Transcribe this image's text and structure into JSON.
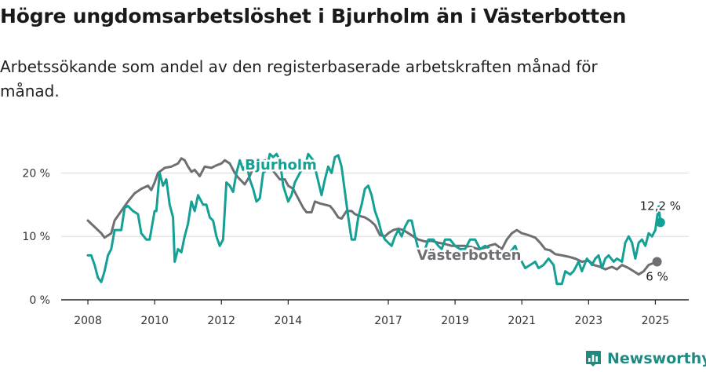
{
  "title": "Högre ungdomsarbetslöshet i Bjurholm än i Västerbotten",
  "subtitle": "Arbetssökande som andel av den registerbaserade arbetskraften månad för månad.",
  "brand": {
    "name": "Newsworthy",
    "icon": "newsworthy-logo-icon",
    "color": "#1f8a80"
  },
  "chart_data": {
    "type": "line",
    "x_unit": "year",
    "xlim": [
      2007.2,
      2026.0
    ],
    "ylim": [
      0,
      25
    ],
    "grid": true,
    "y_ticks": [
      {
        "value": 0,
        "label": "0 %"
      },
      {
        "value": 10,
        "label": "10 %"
      },
      {
        "value": 20,
        "label": "20 %"
      }
    ],
    "x_ticks": [
      {
        "value": 2008,
        "label": "2008"
      },
      {
        "value": 2010,
        "label": "2010"
      },
      {
        "value": 2012,
        "label": "2012"
      },
      {
        "value": 2014,
        "label": "2014"
      },
      {
        "value": 2017,
        "label": "2017"
      },
      {
        "value": 2019,
        "label": "2019"
      },
      {
        "value": 2021,
        "label": "2021"
      },
      {
        "value": 2023,
        "label": "2023"
      },
      {
        "value": 2025,
        "label": "2025"
      }
    ],
    "series": [
      {
        "name": "Västerbotten",
        "color": "#6e6e73",
        "end_label": "6 %",
        "points": [
          [
            2008.0,
            12.5
          ],
          [
            2008.2,
            11.5
          ],
          [
            2008.4,
            10.5
          ],
          [
            2008.5,
            9.8
          ],
          [
            2008.7,
            10.5
          ],
          [
            2008.8,
            12.5
          ],
          [
            2009.0,
            14.0
          ],
          [
            2009.2,
            15.5
          ],
          [
            2009.4,
            16.8
          ],
          [
            2009.6,
            17.5
          ],
          [
            2009.8,
            18.0
          ],
          [
            2009.9,
            17.3
          ],
          [
            2010.0,
            18.5
          ],
          [
            2010.1,
            20.0
          ],
          [
            2010.3,
            20.8
          ],
          [
            2010.5,
            21.0
          ],
          [
            2010.7,
            21.5
          ],
          [
            2010.8,
            22.3
          ],
          [
            2010.9,
            22.0
          ],
          [
            2011.0,
            21.0
          ],
          [
            2011.1,
            20.2
          ],
          [
            2011.2,
            20.5
          ],
          [
            2011.35,
            19.5
          ],
          [
            2011.5,
            21.0
          ],
          [
            2011.7,
            20.8
          ],
          [
            2011.85,
            21.2
          ],
          [
            2012.0,
            21.5
          ],
          [
            2012.1,
            22.0
          ],
          [
            2012.25,
            21.5
          ],
          [
            2012.4,
            20.0
          ],
          [
            2012.5,
            19.3
          ],
          [
            2012.7,
            18.2
          ],
          [
            2012.85,
            19.5
          ],
          [
            2013.0,
            21.5
          ],
          [
            2013.15,
            21.8
          ],
          [
            2013.3,
            22.0
          ],
          [
            2013.45,
            21.0
          ],
          [
            2013.6,
            20.0
          ],
          [
            2013.75,
            19.0
          ],
          [
            2013.9,
            19.0
          ],
          [
            2014.0,
            18.0
          ],
          [
            2014.15,
            17.5
          ],
          [
            2014.3,
            16.0
          ],
          [
            2014.45,
            14.5
          ],
          [
            2014.55,
            13.8
          ],
          [
            2014.7,
            13.8
          ],
          [
            2014.8,
            15.5
          ],
          [
            2014.95,
            15.2
          ],
          [
            2015.1,
            15.0
          ],
          [
            2015.25,
            14.8
          ],
          [
            2015.35,
            14.2
          ],
          [
            2015.5,
            13.0
          ],
          [
            2015.6,
            12.8
          ],
          [
            2015.75,
            14.0
          ],
          [
            2015.9,
            14.0
          ],
          [
            2016.0,
            13.5
          ],
          [
            2016.15,
            13.2
          ],
          [
            2016.3,
            13.0
          ],
          [
            2016.45,
            12.5
          ],
          [
            2016.6,
            11.8
          ],
          [
            2016.75,
            10.2
          ],
          [
            2016.9,
            10.0
          ],
          [
            2017.0,
            10.5
          ],
          [
            2017.15,
            11.0
          ],
          [
            2017.3,
            11.2
          ],
          [
            2017.45,
            11.0
          ],
          [
            2017.6,
            10.5
          ],
          [
            2017.75,
            10.0
          ],
          [
            2017.9,
            9.5
          ],
          [
            2018.1,
            9.2
          ],
          [
            2018.3,
            9.3
          ],
          [
            2018.5,
            9.0
          ],
          [
            2018.7,
            8.8
          ],
          [
            2018.9,
            8.5
          ],
          [
            2019.1,
            8.5
          ],
          [
            2019.3,
            8.5
          ],
          [
            2019.5,
            8.3
          ],
          [
            2019.7,
            8.0
          ],
          [
            2019.9,
            8.2
          ],
          [
            2020.0,
            8.5
          ],
          [
            2020.2,
            8.8
          ],
          [
            2020.4,
            8.0
          ],
          [
            2020.55,
            9.5
          ],
          [
            2020.7,
            10.5
          ],
          [
            2020.85,
            11.0
          ],
          [
            2021.0,
            10.5
          ],
          [
            2021.2,
            10.2
          ],
          [
            2021.4,
            9.8
          ],
          [
            2021.55,
            9.0
          ],
          [
            2021.7,
            8.0
          ],
          [
            2021.85,
            7.8
          ],
          [
            2022.0,
            7.2
          ],
          [
            2022.2,
            7.0
          ],
          [
            2022.4,
            6.8
          ],
          [
            2022.6,
            6.5
          ],
          [
            2022.8,
            6.0
          ],
          [
            2023.0,
            6.2
          ],
          [
            2023.15,
            5.5
          ],
          [
            2023.35,
            5.2
          ],
          [
            2023.5,
            4.8
          ],
          [
            2023.7,
            5.2
          ],
          [
            2023.85,
            4.8
          ],
          [
            2024.0,
            5.5
          ],
          [
            2024.2,
            5.0
          ],
          [
            2024.35,
            4.5
          ],
          [
            2024.5,
            4.0
          ],
          [
            2024.65,
            4.5
          ],
          [
            2024.8,
            5.5
          ],
          [
            2024.95,
            5.8
          ],
          [
            2025.05,
            6.0
          ]
        ]
      },
      {
        "name": "Bjurholm",
        "color": "#14a094",
        "end_label": "12,2 %",
        "points": [
          [
            2008.0,
            7.0
          ],
          [
            2008.1,
            7.0
          ],
          [
            2008.2,
            5.5
          ],
          [
            2008.3,
            3.5
          ],
          [
            2008.4,
            2.8
          ],
          [
            2008.5,
            4.5
          ],
          [
            2008.6,
            7.0
          ],
          [
            2008.7,
            8.0
          ],
          [
            2008.8,
            11.0
          ],
          [
            2008.9,
            11.0
          ],
          [
            2009.0,
            11.0
          ],
          [
            2009.1,
            14.5
          ],
          [
            2009.2,
            14.8
          ],
          [
            2009.35,
            14.0
          ],
          [
            2009.5,
            13.5
          ],
          [
            2009.6,
            10.5
          ],
          [
            2009.75,
            9.5
          ],
          [
            2009.85,
            9.5
          ],
          [
            2010.0,
            14.0
          ],
          [
            2010.05,
            14.0
          ],
          [
            2010.15,
            20.0
          ],
          [
            2010.25,
            18.0
          ],
          [
            2010.35,
            19.0
          ],
          [
            2010.45,
            15.0
          ],
          [
            2010.55,
            13.0
          ],
          [
            2010.6,
            6.0
          ],
          [
            2010.7,
            8.0
          ],
          [
            2010.8,
            7.5
          ],
          [
            2010.9,
            10.0
          ],
          [
            2011.0,
            12.0
          ],
          [
            2011.1,
            15.5
          ],
          [
            2011.2,
            14.0
          ],
          [
            2011.3,
            16.5
          ],
          [
            2011.45,
            15.0
          ],
          [
            2011.55,
            15.0
          ],
          [
            2011.65,
            13.0
          ],
          [
            2011.75,
            12.5
          ],
          [
            2011.85,
            10.0
          ],
          [
            2011.95,
            8.5
          ],
          [
            2012.05,
            9.5
          ],
          [
            2012.15,
            18.5
          ],
          [
            2012.25,
            18.0
          ],
          [
            2012.35,
            17.0
          ],
          [
            2012.45,
            20.0
          ],
          [
            2012.55,
            22.0
          ],
          [
            2012.65,
            20.5
          ],
          [
            2012.75,
            21.5
          ],
          [
            2012.85,
            19.0
          ],
          [
            2012.95,
            17.5
          ],
          [
            2013.05,
            15.5
          ],
          [
            2013.15,
            16.0
          ],
          [
            2013.25,
            20.0
          ],
          [
            2013.35,
            20.5
          ],
          [
            2013.45,
            23.0
          ],
          [
            2013.55,
            22.5
          ],
          [
            2013.65,
            23.0
          ],
          [
            2013.75,
            22.0
          ],
          [
            2013.85,
            18.0
          ],
          [
            2014.0,
            15.5
          ],
          [
            2014.1,
            16.5
          ],
          [
            2014.2,
            18.5
          ],
          [
            2014.3,
            19.5
          ],
          [
            2014.4,
            20.5
          ],
          [
            2014.5,
            21.0
          ],
          [
            2014.6,
            23.0
          ],
          [
            2014.75,
            22.0
          ],
          [
            2015.0,
            16.5
          ],
          [
            2015.1,
            19.0
          ],
          [
            2015.2,
            21.0
          ],
          [
            2015.3,
            20.0
          ],
          [
            2015.4,
            22.5
          ],
          [
            2015.5,
            22.8
          ],
          [
            2015.6,
            21.0
          ],
          [
            2015.7,
            17.0
          ],
          [
            2015.8,
            13.0
          ],
          [
            2015.9,
            9.5
          ],
          [
            2016.0,
            9.5
          ],
          [
            2016.1,
            13.0
          ],
          [
            2016.2,
            15.0
          ],
          [
            2016.3,
            17.5
          ],
          [
            2016.4,
            18.0
          ],
          [
            2016.5,
            16.5
          ],
          [
            2016.6,
            14.0
          ],
          [
            2016.7,
            12.5
          ],
          [
            2016.8,
            10.5
          ],
          [
            2016.9,
            9.5
          ],
          [
            2017.0,
            9.0
          ],
          [
            2017.1,
            8.5
          ],
          [
            2017.2,
            10.0
          ],
          [
            2017.3,
            11.0
          ],
          [
            2017.4,
            10.0
          ],
          [
            2017.5,
            11.5
          ],
          [
            2017.6,
            12.5
          ],
          [
            2017.7,
            12.5
          ],
          [
            2017.8,
            10.0
          ],
          [
            2017.9,
            8.0
          ],
          [
            2018.0,
            7.0
          ],
          [
            2018.1,
            8.0
          ],
          [
            2018.2,
            9.5
          ],
          [
            2018.35,
            9.5
          ],
          [
            2018.5,
            8.5
          ],
          [
            2018.6,
            8.0
          ],
          [
            2018.7,
            9.5
          ],
          [
            2018.85,
            9.5
          ],
          [
            2019.0,
            8.5
          ],
          [
            2019.15,
            8.0
          ],
          [
            2019.3,
            8.0
          ],
          [
            2019.45,
            9.5
          ],
          [
            2019.6,
            9.5
          ],
          [
            2019.75,
            8.0
          ],
          [
            2019.9,
            8.5
          ],
          [
            2020.05,
            8.0
          ],
          [
            2020.2,
            7.5
          ],
          [
            2020.35,
            7.0
          ],
          [
            2020.5,
            6.5
          ],
          [
            2020.65,
            7.5
          ],
          [
            2020.8,
            8.5
          ],
          [
            2020.95,
            6.5
          ],
          [
            2021.1,
            5.0
          ],
          [
            2021.25,
            5.5
          ],
          [
            2021.4,
            6.0
          ],
          [
            2021.5,
            5.0
          ],
          [
            2021.65,
            5.5
          ],
          [
            2021.8,
            6.5
          ],
          [
            2021.95,
            5.5
          ],
          [
            2022.05,
            2.5
          ],
          [
            2022.2,
            2.5
          ],
          [
            2022.3,
            4.5
          ],
          [
            2022.45,
            4.0
          ],
          [
            2022.55,
            4.5
          ],
          [
            2022.7,
            6.0
          ],
          [
            2022.8,
            4.5
          ],
          [
            2022.95,
            6.5
          ],
          [
            2023.1,
            5.5
          ],
          [
            2023.2,
            6.5
          ],
          [
            2023.3,
            7.0
          ],
          [
            2023.4,
            5.0
          ],
          [
            2023.5,
            6.5
          ],
          [
            2023.6,
            7.0
          ],
          [
            2023.75,
            6.0
          ],
          [
            2023.85,
            6.5
          ],
          [
            2024.0,
            6.0
          ],
          [
            2024.1,
            9.0
          ],
          [
            2024.2,
            10.0
          ],
          [
            2024.3,
            9.0
          ],
          [
            2024.4,
            6.5
          ],
          [
            2024.5,
            9.0
          ],
          [
            2024.6,
            9.5
          ],
          [
            2024.7,
            8.5
          ],
          [
            2024.8,
            10.5
          ],
          [
            2024.9,
            10.0
          ],
          [
            2025.0,
            11.0
          ],
          [
            2025.05,
            13.0
          ],
          [
            2025.1,
            14.8
          ],
          [
            2025.15,
            12.2
          ]
        ]
      }
    ],
    "annotations": [
      {
        "text": "Bjurholm",
        "series": "Bjurholm"
      },
      {
        "text": "Västerbotten",
        "series": "Västerbotten"
      }
    ]
  }
}
